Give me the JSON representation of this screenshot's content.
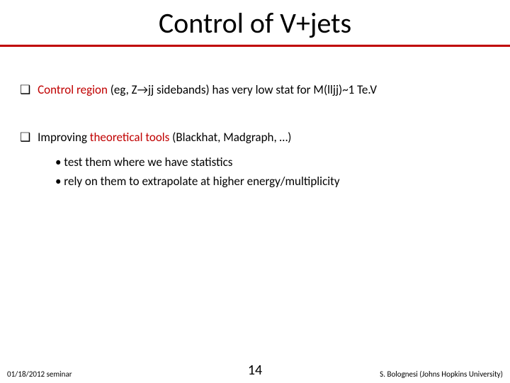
{
  "title": "Control of V+jets",
  "bullets": [
    {
      "prefix": "Control region",
      "rest": " (eg, Z→jj sidebands)  has very low stat for M(lljj)~1 Te.V"
    },
    {
      "prefix_black": "Improving ",
      "prefix_accent": "theoretical tools",
      "rest": " (Blackhat, Madgraph, …)",
      "subs": [
        "• test them where we have statistics",
        "• rely on them to extrapolate at higher energy/multiplicity"
      ]
    }
  ],
  "footer": {
    "left": "01/18/2012 seminar",
    "page": "14",
    "right": "S. Bolognesi (Johns Hopkins University)"
  },
  "colors": {
    "accent": "#c00000"
  }
}
